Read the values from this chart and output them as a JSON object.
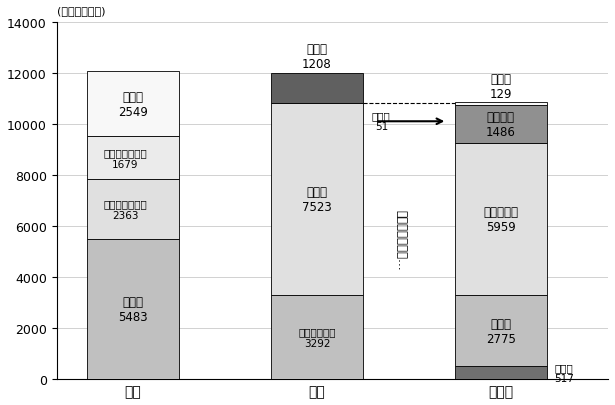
{
  "bars": {
    "収入": {
      "segments": [
        {
          "label": "使用料",
          "value_str": "5483",
          "value": 5483,
          "color": "#c0c0c0"
        },
        {
          "label": "雨水処理負担金",
          "value_str": "2363",
          "value": 2363,
          "color": "#e0e0e0"
        },
        {
          "label": "他会計補助金等",
          "value_str": "1679",
          "value": 1679,
          "color": "#ebebeb"
        },
        {
          "label": "その他",
          "value_str": "2549",
          "value": 2549,
          "color": "#f8f8f8"
        }
      ]
    },
    "支出": {
      "segments": [
        {
          "label": "維持管理経費",
          "value_str": "3292",
          "value": 3292,
          "color": "#c0c0c0"
        },
        {
          "label": "資本費",
          "value_str": "7523",
          "value": 7523,
          "color": "#e0e0e0"
        },
        {
          "label": "純利益",
          "value_str": "1208",
          "value": 1208,
          "color": "#606060"
        }
      ]
    },
    "性質別": {
      "segments": [
        {
          "label": "人件費",
          "value_str": "517",
          "value": 517,
          "color": "#707070"
        },
        {
          "label": "物件費",
          "value_str": "2775",
          "value": 2775,
          "color": "#c0c0c0"
        },
        {
          "label": "減価償却費",
          "value_str": "5959",
          "value": 5959,
          "color": "#e0e0e0"
        },
        {
          "label": "支払利息",
          "value_str": "1486",
          "value": 1486,
          "color": "#909090"
        },
        {
          "label": "その他",
          "value_str": "129",
          "value": 129,
          "color": "#f8f8f8"
        }
      ]
    }
  },
  "bar_labels": [
    "収入",
    "支出",
    "性質別"
  ],
  "bar_positions": [
    0.5,
    1.7,
    2.9
  ],
  "bar_width": 0.6,
  "xlim": [
    0,
    3.6
  ],
  "ylim": [
    0,
    14000
  ],
  "yticks": [
    0,
    2000,
    4000,
    6000,
    8000,
    10000,
    12000,
    14000
  ],
  "unit_label": "(単位：百万円)",
  "vertical_text": "性質別にみると…",
  "other51_label": "その他",
  "other51_value": "51",
  "dashed_y": 10815,
  "background_color": "#ffffff"
}
